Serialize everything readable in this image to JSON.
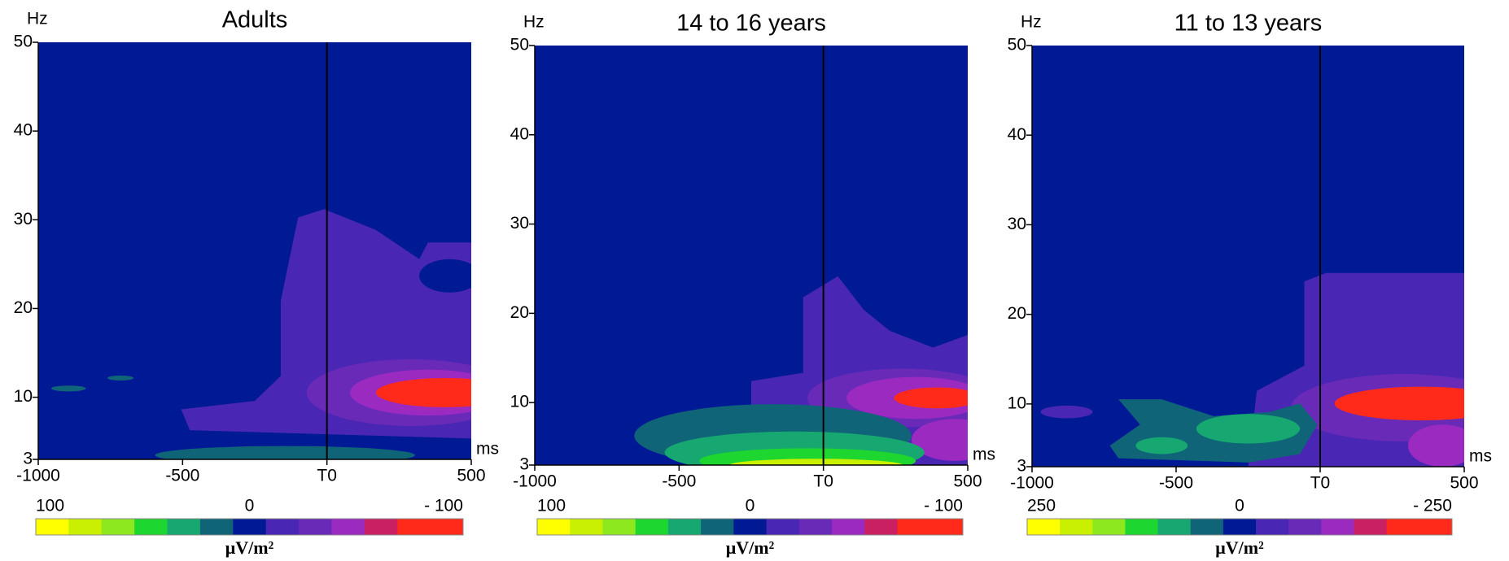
{
  "chart_data": [
    {
      "type": "heatmap",
      "title": "Adults",
      "ylabel": "Hz",
      "xlabel": "ms",
      "xlim": [
        -1000,
        500
      ],
      "ylim": [
        3,
        50
      ],
      "xticks": [
        -1000,
        -500,
        {
          "value": 0,
          "label": "T0"
        },
        500
      ],
      "yticks": [
        3,
        10,
        20,
        30,
        40,
        50
      ],
      "colorbar": {
        "label": "μV/m²",
        "clim": [
          100,
          -100
        ],
        "ticks": [
          100,
          0,
          {
            "value": -100,
            "label": "- 100"
          }
        ],
        "colors": [
          "#ffff00",
          "#c8f000",
          "#8ee81e",
          "#1ed630",
          "#16a870",
          "#0f6478",
          "#001a96",
          "#4a26b4",
          "#6a2ab8",
          "#9a2ac0",
          "#c82060",
          "#ff2a1a",
          "#ff2a1a"
        ]
      }
    },
    {
      "type": "heatmap",
      "title": "14 to 16 years",
      "ylabel": "Hz",
      "xlabel": "ms",
      "xlim": [
        -1000,
        500
      ],
      "ylim": [
        3,
        50
      ],
      "xticks": [
        -1000,
        -500,
        {
          "value": 0,
          "label": "T0"
        },
        500
      ],
      "yticks": [
        3,
        10,
        20,
        30,
        40,
        50
      ],
      "colorbar": {
        "label": "μV/m²",
        "clim": [
          100,
          -100
        ],
        "ticks": [
          100,
          0,
          {
            "value": -100,
            "label": "- 100"
          }
        ],
        "colors": [
          "#ffff00",
          "#c8f000",
          "#8ee81e",
          "#1ed630",
          "#16a870",
          "#0f6478",
          "#001a96",
          "#4a26b4",
          "#6a2ab8",
          "#9a2ac0",
          "#c82060",
          "#ff2a1a",
          "#ff2a1a"
        ]
      }
    },
    {
      "type": "heatmap",
      "title": "11 to 13 years",
      "ylabel": "Hz",
      "xlabel": "ms",
      "xlim": [
        -1000,
        500
      ],
      "ylim": [
        3,
        50
      ],
      "xticks": [
        -1000,
        -500,
        {
          "value": 0,
          "label": "T0"
        },
        500
      ],
      "yticks": [
        3,
        10,
        20,
        30,
        40,
        50
      ],
      "colorbar": {
        "label": "μV/m²",
        "clim": [
          250,
          -250
        ],
        "ticks": [
          250,
          0,
          {
            "value": -250,
            "label": "- 250"
          }
        ],
        "colors": [
          "#ffff00",
          "#c8f000",
          "#8ee81e",
          "#1ed630",
          "#16a870",
          "#0f6478",
          "#001a96",
          "#4a26b4",
          "#6a2ab8",
          "#9a2ac0",
          "#c82060",
          "#ff2a1a",
          "#ff2a1a"
        ]
      }
    }
  ]
}
